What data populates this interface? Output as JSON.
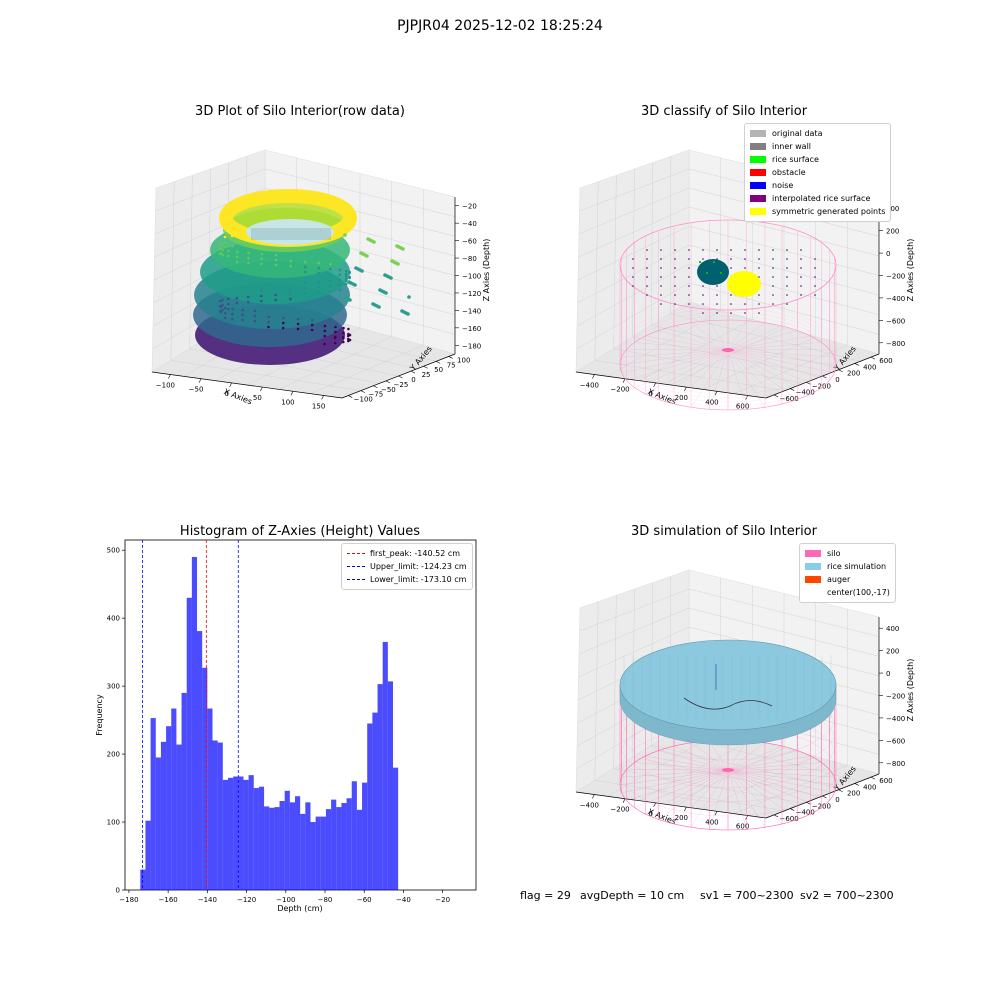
{
  "suptitle": "PJPJR04 2025-12-02 18:25:24",
  "panels": {
    "p1": {
      "title": "3D Plot of Silo Interior(row data)",
      "xlabel": "X Axies",
      "ylabel": "Y Axies",
      "zlabel": "Z Axies (Depth)",
      "xticks": [
        "−100",
        "−50",
        "0",
        "50",
        "100",
        "150"
      ],
      "yticks": [
        "100",
        "75",
        "50",
        "25",
        "0",
        "−25",
        "−50",
        "−75",
        "−100"
      ],
      "zticks": [
        "−20",
        "−40",
        "−60",
        "−80",
        "−100",
        "−120",
        "−140",
        "−160",
        "−180"
      ]
    },
    "p2": {
      "title": "3D classify of Silo Interior",
      "xlabel": "X Axies",
      "ylabel": "Y Axies",
      "zlabel": "Z Axies (Depth)",
      "xticks": [
        "−400",
        "−200",
        "0",
        "200",
        "400",
        "600"
      ],
      "yticks": [
        "600",
        "400",
        "200",
        "0",
        "−200",
        "−400",
        "−600"
      ],
      "zticks": [
        "400",
        "200",
        "0",
        "−200",
        "−400",
        "−600",
        "−800"
      ],
      "legend": [
        {
          "label": "original data",
          "color": "#b3b3b3"
        },
        {
          "label": "inner wall",
          "color": "#808080"
        },
        {
          "label": "rice surface",
          "color": "#00ff00"
        },
        {
          "label": "obstacle",
          "color": "#ff0000"
        },
        {
          "label": "noise",
          "color": "#0000ff"
        },
        {
          "label": "interpolated rice surface",
          "color": "#800080"
        },
        {
          "label": "symmetric generated points",
          "color": "#ffff00"
        }
      ]
    },
    "p4": {
      "title": "3D simulation of Silo Interior",
      "xlabel": "X Axies",
      "ylabel": "Y Axies",
      "zlabel": "Z Axies (Depth)",
      "xticks": [
        "−400",
        "−200",
        "0",
        "200",
        "400",
        "600"
      ],
      "yticks": [
        "600",
        "400",
        "200",
        "0",
        "−200",
        "−400",
        "−600"
      ],
      "zticks": [
        "400",
        "200",
        "0",
        "−200",
        "−400",
        "−600",
        "−800"
      ],
      "legend": [
        {
          "label": "silo",
          "color": "#ff69b4"
        },
        {
          "label": "rice simulation",
          "color": "#87ceeb"
        },
        {
          "label": "auger",
          "color": "#ff4500"
        },
        {
          "label": "center(100,-17)",
          "color": "#ffffff"
        }
      ]
    }
  },
  "chart_data": {
    "type": "bar",
    "title": "Histogram of Z-Axies (Height) Values",
    "xlabel": "Depth (cm)",
    "ylabel": "Frequency",
    "xlim": [
      -182,
      -3
    ],
    "ylim": [
      0,
      515
    ],
    "bar_color": "#0000ff",
    "bin_start": -174.2,
    "bin_width": 2.63,
    "values": [
      30,
      102,
      253,
      195,
      218,
      241,
      267,
      214,
      290,
      430,
      490,
      381,
      327,
      267,
      220,
      217,
      162,
      165,
      167,
      167,
      162,
      169,
      150,
      152,
      123,
      121,
      122,
      131,
      146,
      129,
      138,
      112,
      129,
      100,
      108,
      108,
      119,
      133,
      122,
      128,
      135,
      160,
      118,
      158,
      245,
      261,
      303,
      365,
      307,
      180
    ],
    "xticks": [
      "−180",
      "−160",
      "−140",
      "−120",
      "−100",
      "−80",
      "−60",
      "−40",
      "−20"
    ],
    "xtick_values": [
      -180,
      -160,
      -140,
      -120,
      -100,
      -80,
      -60,
      -40,
      -20
    ],
    "yticks": [
      "0",
      "100",
      "200",
      "300",
      "400",
      "500"
    ],
    "ytick_values": [
      0,
      100,
      200,
      300,
      400,
      500
    ],
    "vlines": [
      {
        "label": "first_peak: -140.52 cm",
        "value": -140.52,
        "color": "#ff0000"
      },
      {
        "label": "Upper_limit: -124.23 cm",
        "value": -124.23,
        "color": "#0000ff"
      },
      {
        "label": "Lower_limit: -173.10 cm",
        "value": -173.1,
        "color": "#0000ff"
      }
    ],
    "legend_position": "upper right"
  },
  "status": {
    "flag": "flag = 29",
    "avg": "avgDepth = 10 cm",
    "sv1": "sv1 = 700~2300",
    "sv2": "sv2 = 700~2300"
  }
}
